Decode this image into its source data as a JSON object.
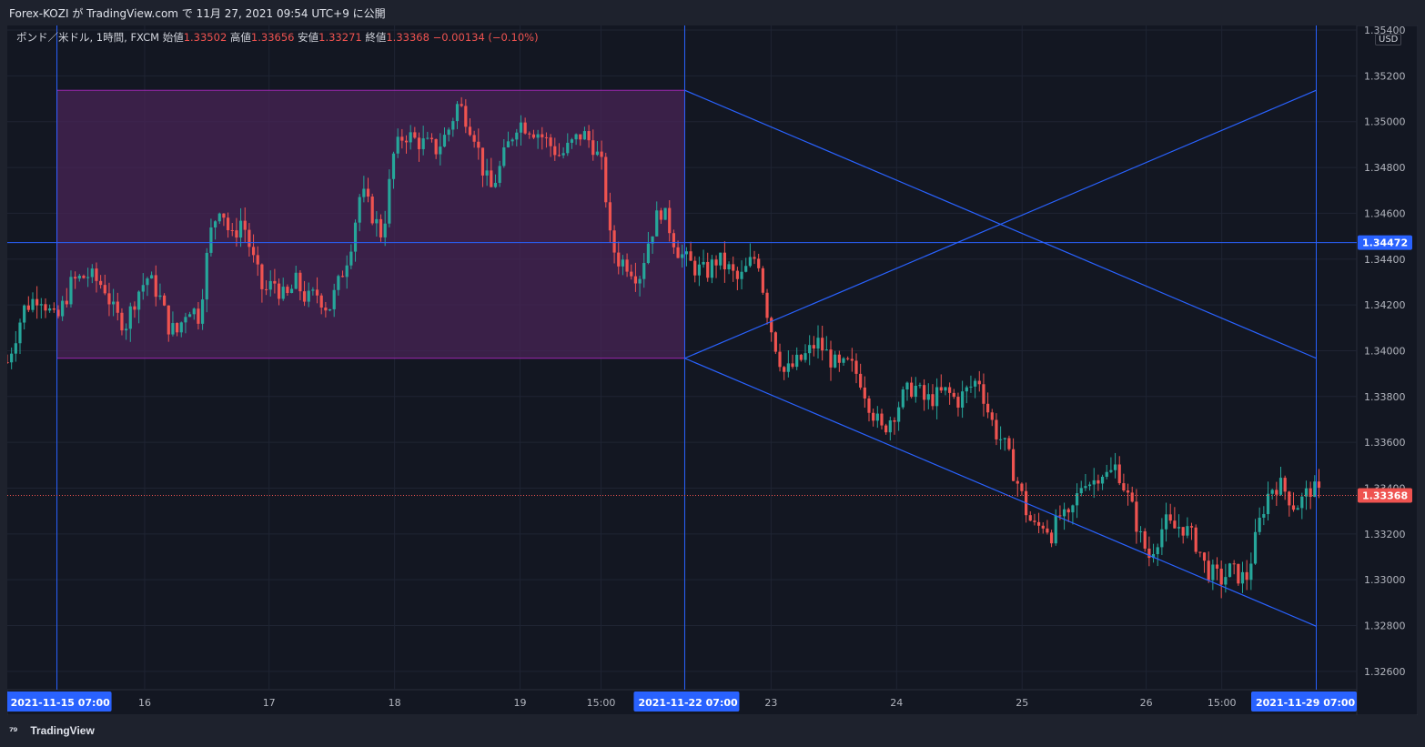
{
  "header": {
    "published": "Forex-KOZI が TradingView.com で 11月 27, 2021 09:54 UTC+9 に公開"
  },
  "legend": {
    "symbol": "ポンド／米ドル, 1時間, FXCM",
    "open_label": "始値",
    "open": "1.33502",
    "high_label": "高値",
    "high": "1.33656",
    "low_label": "安値",
    "low": "1.33271",
    "close_label": "終値",
    "close": "1.33368",
    "change": "−0.00134 (−0.10%)"
  },
  "currency": "USD",
  "footer": {
    "brand": "TradingView"
  },
  "colors": {
    "bg": "#131722",
    "grid": "#1f2433",
    "up": "#26a69a",
    "down": "#ef5350",
    "drawing": "#2962ff",
    "rect_fill": "#4a2457",
    "rect_border": "#9c27b0",
    "current_price": "#ef5350"
  },
  "chart_data": {
    "type": "candlestick",
    "symbol": "GBPUSD",
    "interval": "1h",
    "ylim": [
      1.3252,
      1.3542
    ],
    "y_ticks": [
      "1.32600",
      "1.32800",
      "1.33000",
      "1.33200",
      "1.33400",
      "1.33600",
      "1.33800",
      "1.34000",
      "1.34200",
      "1.34400",
      "1.34600",
      "1.34800",
      "1.35000",
      "1.35200",
      "1.35400"
    ],
    "x_labels": [
      {
        "t": 0.0368,
        "label": "2021-11-15   07:00",
        "highlight": true
      },
      {
        "t": 0.1018,
        "label": "16"
      },
      {
        "t": 0.194,
        "label": "17"
      },
      {
        "t": 0.287,
        "label": "18"
      },
      {
        "t": 0.38,
        "label": "19"
      },
      {
        "t": 0.44,
        "label": "15:00"
      },
      {
        "t": 0.502,
        "label": "2021-11-22   07:00",
        "highlight": true
      },
      {
        "t": 0.566,
        "label": "23"
      },
      {
        "t": 0.659,
        "label": "24"
      },
      {
        "t": 0.752,
        "label": "25"
      },
      {
        "t": 0.844,
        "label": "26"
      },
      {
        "t": 0.9,
        "label": "15:00"
      },
      {
        "t": 0.97,
        "label": "2021-11-29   07:00",
        "highlight": true
      }
    ],
    "horizontal_line": {
      "value": 1.34472,
      "label": "1.34472"
    },
    "current_price": {
      "value": 1.33368,
      "label": "1.33368"
    },
    "rectangle": {
      "t0": 0.0368,
      "t1": 0.502,
      "top": 1.35137,
      "bottom": 1.33967
    },
    "vertical_lines": [
      0.0368,
      0.502,
      0.97
    ],
    "trend_lines": [
      {
        "t0": 0.502,
        "v0": 1.35137,
        "t1": 0.97,
        "v1": 1.33967
      },
      {
        "t0": 0.502,
        "v0": 1.33967,
        "t1": 0.97,
        "v1": 1.35137
      },
      {
        "t0": 0.502,
        "v0": 1.33967,
        "t1": 0.97,
        "v1": 1.32797
      }
    ],
    "path": [
      [
        0.0,
        1.3395
      ],
      [
        0.012,
        1.3418
      ],
      [
        0.024,
        1.3425
      ],
      [
        0.036,
        1.3412
      ],
      [
        0.048,
        1.343
      ],
      [
        0.06,
        1.3433
      ],
      [
        0.072,
        1.3428
      ],
      [
        0.08,
        1.3415
      ],
      [
        0.088,
        1.3412
      ],
      [
        0.096,
        1.3425
      ],
      [
        0.104,
        1.3432
      ],
      [
        0.112,
        1.3425
      ],
      [
        0.12,
        1.341
      ],
      [
        0.126,
        1.3408
      ],
      [
        0.134,
        1.342
      ],
      [
        0.142,
        1.3415
      ],
      [
        0.15,
        1.345
      ],
      [
        0.158,
        1.3465
      ],
      [
        0.166,
        1.3448
      ],
      [
        0.174,
        1.3458
      ],
      [
        0.182,
        1.344
      ],
      [
        0.19,
        1.3425
      ],
      [
        0.198,
        1.343
      ],
      [
        0.206,
        1.3422
      ],
      [
        0.214,
        1.343
      ],
      [
        0.222,
        1.3422
      ],
      [
        0.23,
        1.3425
      ],
      [
        0.238,
        1.3418
      ],
      [
        0.246,
        1.343
      ],
      [
        0.254,
        1.3445
      ],
      [
        0.262,
        1.347
      ],
      [
        0.27,
        1.346
      ],
      [
        0.278,
        1.345
      ],
      [
        0.286,
        1.3485
      ],
      [
        0.294,
        1.3495
      ],
      [
        0.302,
        1.3492
      ],
      [
        0.31,
        1.349
      ],
      [
        0.318,
        1.3488
      ],
      [
        0.326,
        1.3495
      ],
      [
        0.334,
        1.3508
      ],
      [
        0.34,
        1.3502
      ],
      [
        0.346,
        1.3495
      ],
      [
        0.352,
        1.348
      ],
      [
        0.358,
        1.347
      ],
      [
        0.364,
        1.3478
      ],
      [
        0.37,
        1.3488
      ],
      [
        0.378,
        1.35
      ],
      [
        0.386,
        1.3498
      ],
      [
        0.394,
        1.3495
      ],
      [
        0.402,
        1.349
      ],
      [
        0.41,
        1.3485
      ],
      [
        0.418,
        1.349
      ],
      [
        0.426,
        1.3495
      ],
      [
        0.434,
        1.349
      ],
      [
        0.442,
        1.3478
      ],
      [
        0.446,
        1.345
      ],
      [
        0.452,
        1.344
      ],
      [
        0.46,
        1.3438
      ],
      [
        0.468,
        1.3432
      ],
      [
        0.476,
        1.345
      ],
      [
        0.484,
        1.3462
      ],
      [
        0.49,
        1.3455
      ],
      [
        0.496,
        1.3445
      ],
      [
        0.502,
        1.344
      ],
      [
        0.51,
        1.3436
      ],
      [
        0.518,
        1.3434
      ],
      [
        0.526,
        1.344
      ],
      [
        0.534,
        1.3436
      ],
      [
        0.542,
        1.343
      ],
      [
        0.55,
        1.3438
      ],
      [
        0.556,
        1.3442
      ],
      [
        0.562,
        1.342
      ],
      [
        0.568,
        1.3405
      ],
      [
        0.576,
        1.339
      ],
      [
        0.584,
        1.3394
      ],
      [
        0.592,
        1.3398
      ],
      [
        0.6,
        1.3404
      ],
      [
        0.608,
        1.3398
      ],
      [
        0.616,
        1.3392
      ],
      [
        0.624,
        1.3394
      ],
      [
        0.632,
        1.3388
      ],
      [
        0.64,
        1.3375
      ],
      [
        0.648,
        1.3365
      ],
      [
        0.656,
        1.3372
      ],
      [
        0.664,
        1.338
      ],
      [
        0.672,
        1.3385
      ],
      [
        0.68,
        1.3378
      ],
      [
        0.688,
        1.338
      ],
      [
        0.696,
        1.3382
      ],
      [
        0.704,
        1.3378
      ],
      [
        0.712,
        1.3383
      ],
      [
        0.72,
        1.3388
      ],
      [
        0.726,
        1.3375
      ],
      [
        0.732,
        1.3365
      ],
      [
        0.738,
        1.336
      ],
      [
        0.744,
        1.335
      ],
      [
        0.75,
        1.334
      ],
      [
        0.756,
        1.3328
      ],
      [
        0.762,
        1.3322
      ],
      [
        0.768,
        1.3325
      ],
      [
        0.774,
        1.332
      ],
      [
        0.78,
        1.3328
      ],
      [
        0.786,
        1.3325
      ],
      [
        0.792,
        1.3335
      ],
      [
        0.798,
        1.3345
      ],
      [
        0.804,
        1.3342
      ],
      [
        0.81,
        1.3348
      ],
      [
        0.816,
        1.3345
      ],
      [
        0.822,
        1.335
      ],
      [
        0.828,
        1.334
      ],
      [
        0.834,
        1.333
      ],
      [
        0.84,
        1.3318
      ],
      [
        0.846,
        1.331
      ],
      [
        0.852,
        1.3318
      ],
      [
        0.858,
        1.3325
      ],
      [
        0.864,
        1.3322
      ],
      [
        0.87,
        1.3324
      ],
      [
        0.876,
        1.332
      ],
      [
        0.882,
        1.3315
      ],
      [
        0.888,
        1.3305
      ],
      [
        0.894,
        1.3302
      ],
      [
        0.9,
        1.33
      ],
      [
        0.906,
        1.3304
      ],
      [
        0.912,
        1.3302
      ],
      [
        0.918,
        1.33
      ],
      [
        0.924,
        1.3315
      ],
      [
        0.93,
        1.333
      ],
      [
        0.936,
        1.334
      ],
      [
        0.942,
        1.3342
      ],
      [
        0.948,
        1.3338
      ],
      [
        0.954,
        1.3332
      ],
      [
        0.96,
        1.3335
      ],
      [
        0.966,
        1.334
      ],
      [
        0.972,
        1.3337
      ]
    ]
  }
}
